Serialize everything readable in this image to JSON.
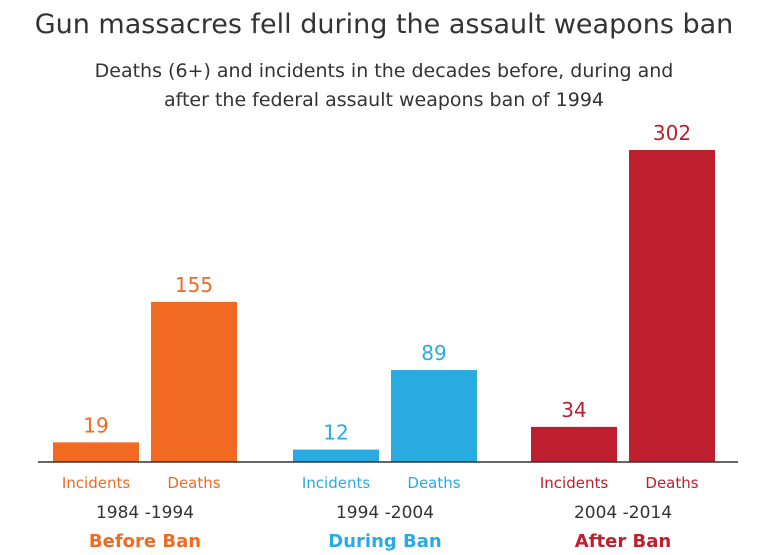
{
  "chart_data": {
    "type": "bar",
    "title": "Gun massacres fell during the assault weapons ban",
    "subtitle_line1": "Deaths (6+) and incidents in the decades before, during and",
    "subtitle_line2": "after the federal assault weapons ban of 1994",
    "xlabel": "",
    "ylabel": "",
    "grid": false,
    "legend": "none",
    "ylim": [
      0,
      320
    ],
    "bar_labels": [
      "Incidents",
      "Deaths"
    ],
    "groups": [
      {
        "period": "1984 -1994",
        "label": "Before Ban",
        "color": "#f26a22",
        "values": [
          19,
          155
        ],
        "value_labels": [
          "19",
          "155"
        ]
      },
      {
        "period": "1994 -2004",
        "label": "During Ban",
        "color": "#29abe2",
        "values": [
          12,
          89
        ],
        "value_labels": [
          "12",
          "89"
        ]
      },
      {
        "period": "2004 -2014",
        "label": "After Ban",
        "color": "#be1e2d",
        "values": [
          34,
          302
        ],
        "value_labels": [
          "34",
          "302"
        ]
      }
    ]
  }
}
